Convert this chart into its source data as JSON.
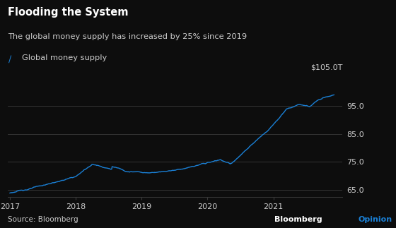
{
  "title": "Flooding the System",
  "subtitle": "The global money supply has increased by 25% since 2019",
  "legend_label": "Global money supply",
  "source": "Source: Bloomberg",
  "line_color": "#1a7fd4",
  "background_color": "#0d0d0d",
  "grid_color": "#3a3a3a",
  "text_color": "#ffffff",
  "subtext_color": "#cccccc",
  "ylabel_top": "$105.0T",
  "yticks": [
    65.0,
    75.0,
    85.0,
    95.0
  ],
  "ylim": [
    62.5,
    107
  ],
  "xticks": [
    2017,
    2018,
    2019,
    2020,
    2021
  ],
  "xlim": [
    2016.97,
    2022.05
  ]
}
